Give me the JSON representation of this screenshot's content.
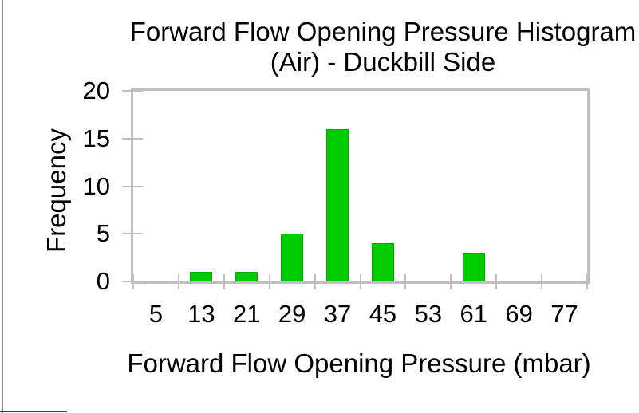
{
  "chart_data": {
    "type": "bar",
    "subtype": "histogram",
    "title_lines": [
      "Forward Flow Opening Pressure Histogram",
      "(Air) - Duckbill Side"
    ],
    "categories": [
      "5",
      "13",
      "21",
      "29",
      "37",
      "45",
      "53",
      "61",
      "69",
      "77"
    ],
    "values": [
      0,
      1,
      1,
      5,
      16,
      4,
      0,
      3,
      0,
      0
    ],
    "xlabel": "Forward Flow Opening Pressure (mbar)",
    "ylabel": "Frequency",
    "ylim": [
      0,
      20
    ],
    "yticks": [
      0,
      5,
      10,
      15,
      20
    ],
    "grid": false,
    "legend": false,
    "bar_color": "#00CC00",
    "bar_border_color": "#00AA00",
    "axis_color": "#C0C0C0",
    "text_color": "#000000"
  }
}
